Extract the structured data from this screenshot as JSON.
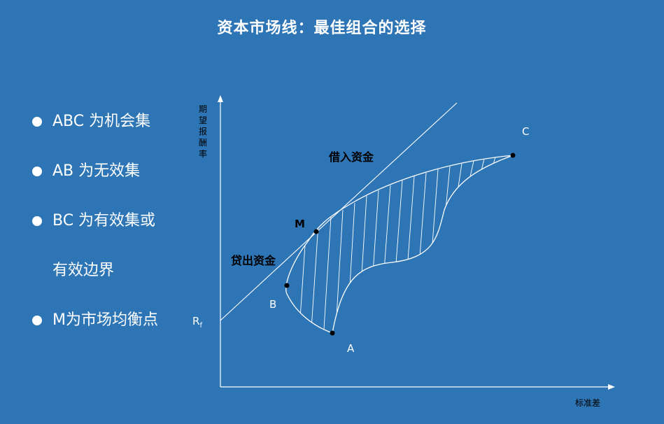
{
  "title": "资本市场线：最佳组合的选择",
  "bullets": [
    {
      "text": "ABC 为机会集",
      "has_dot": true
    },
    {
      "text": "AB 为无效集",
      "has_dot": true
    },
    {
      "text": "BC 为有效集或",
      "has_dot": true
    },
    {
      "text": "有效边界",
      "has_dot": false
    },
    {
      "text": "M为市场均衡点",
      "has_dot": true
    }
  ],
  "diagram": {
    "y_axis_label": [
      "期",
      "望",
      "报",
      "酬",
      "率"
    ],
    "x_axis_label": "标准差",
    "rf_label": "R",
    "rf_subscript": "f",
    "points": {
      "A": "A",
      "B": "B",
      "C": "C",
      "M": "M"
    },
    "lending_label": "贷出资金",
    "borrowing_label": "借入资金"
  },
  "colors": {
    "background": "#2E75B6",
    "foreground": "#FFFFFF",
    "dark_text": "#000000"
  }
}
